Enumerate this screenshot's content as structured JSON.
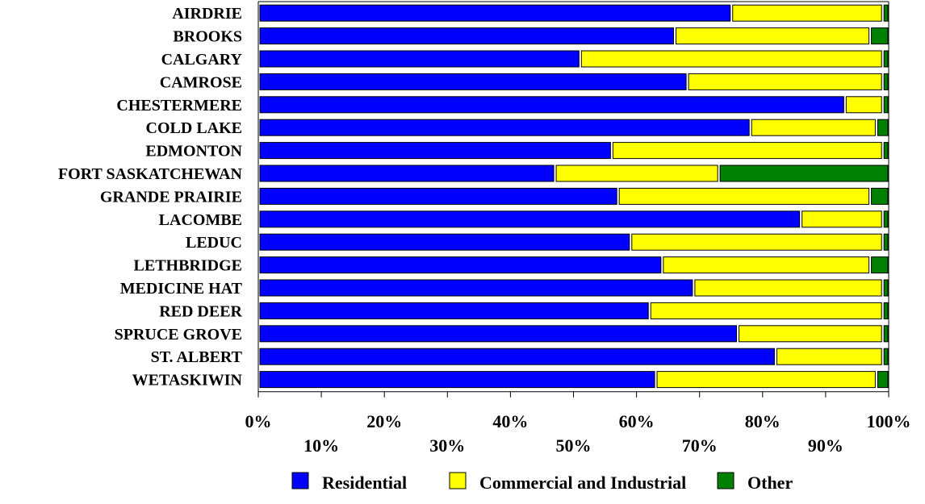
{
  "chart_data": {
    "type": "bar",
    "orientation": "horizontal",
    "stacked": "percent",
    "categories": [
      "AIRDRIE",
      "BROOKS",
      "CALGARY",
      "CAMROSE",
      "CHESTERMERE",
      "COLD LAKE",
      "EDMONTON",
      "FORT SASKATCHEWAN",
      "GRANDE PRAIRIE",
      "LACOMBE",
      "LEDUC",
      "LETHBRIDGE",
      "MEDICINE HAT",
      "RED DEER",
      "SPRUCE GROVE",
      "ST. ALBERT",
      "WETASKIWIN"
    ],
    "series": [
      {
        "name": "Residential",
        "color": "#0000ff",
        "values": [
          75,
          66,
          51,
          68,
          93,
          78,
          56,
          47,
          57,
          86,
          59,
          64,
          69,
          62,
          76,
          82,
          63
        ]
      },
      {
        "name": "Commercial and Industrial",
        "color": "#ffff00",
        "values": [
          24,
          31,
          48,
          31,
          6,
          20,
          43,
          26,
          40,
          13,
          40,
          33,
          30,
          37,
          23,
          17,
          35
        ]
      },
      {
        "name": "Other",
        "color": "#008000",
        "values": [
          1,
          3,
          1,
          1,
          1,
          2,
          1,
          27,
          3,
          1,
          1,
          3,
          1,
          1,
          1,
          1,
          2
        ]
      }
    ],
    "xlim": [
      0,
      100
    ],
    "xticks": [
      0,
      10,
      20,
      30,
      40,
      50,
      60,
      70,
      80,
      90,
      100
    ],
    "xtick_labels": [
      "0%",
      "10%",
      "20%",
      "30%",
      "40%",
      "50%",
      "60%",
      "70%",
      "80%",
      "90%",
      "100%"
    ],
    "title": "",
    "xlabel": "",
    "ylabel": "",
    "legend_position": "bottom",
    "grid": false
  }
}
